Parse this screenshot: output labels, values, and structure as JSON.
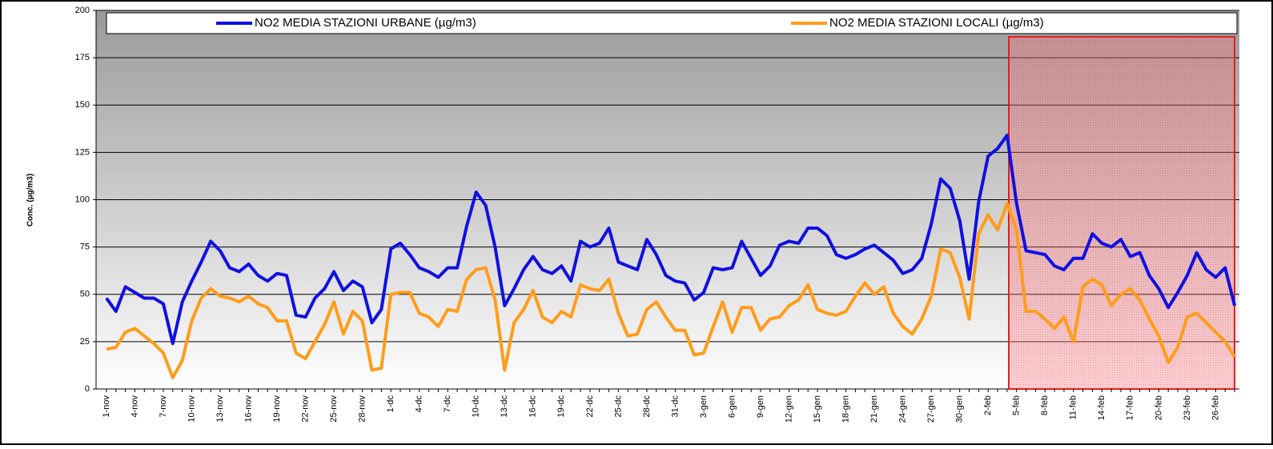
{
  "chart_data": {
    "type": "line",
    "y_label": "Conc. (µg/m3)",
    "categories": [
      "1-nov",
      null,
      null,
      "4-nov",
      null,
      null,
      "7-nov",
      null,
      null,
      "10-nov",
      null,
      null,
      "13-nov",
      null,
      null,
      "16-nov",
      null,
      null,
      "19-nov",
      null,
      null,
      "22-nov",
      null,
      null,
      "25-nov",
      null,
      null,
      "28-nov",
      null,
      null,
      "1-dc",
      null,
      null,
      "4-dc",
      null,
      null,
      "7-dc",
      null,
      null,
      "10-dc",
      null,
      null,
      "13-dc",
      null,
      null,
      "16-dc",
      null,
      null,
      "19-dc",
      null,
      null,
      "22-dc",
      null,
      null,
      "25-dc",
      null,
      null,
      "28-dc",
      null,
      null,
      "31-dc",
      null,
      null,
      "3-gen",
      null,
      null,
      "6-gen",
      null,
      null,
      "9-gen",
      null,
      null,
      "12-gen",
      null,
      null,
      "15-gen",
      null,
      null,
      "18-gen",
      null,
      null,
      "21-gen",
      null,
      null,
      "24-gen",
      null,
      null,
      "27-gen",
      null,
      null,
      "30-gen",
      null,
      null,
      "2-feb",
      null,
      null,
      "5-feb",
      null,
      null,
      "8-feb",
      null,
      null,
      "11-feb",
      null,
      null,
      "14-feb",
      null,
      null,
      "17-feb",
      null,
      null,
      "20-feb",
      null,
      null,
      "23-feb",
      null,
      null,
      "26-feb",
      null,
      null
    ],
    "series": [
      {
        "name": "NO2 MEDIA STAZIONI URBANE (µg/m3)",
        "color": "#1010e0",
        "values": [
          48,
          41,
          54,
          51,
          48,
          48,
          45,
          24,
          46,
          57,
          67,
          78,
          73,
          64,
          62,
          66,
          60,
          57,
          61,
          60,
          39,
          38,
          48,
          53,
          62,
          52,
          57,
          54,
          35,
          42,
          74,
          77,
          71,
          64,
          62,
          59,
          64,
          64,
          86,
          104,
          97,
          75,
          44,
          53,
          63,
          70,
          63,
          61,
          65,
          57,
          78,
          75,
          77,
          85,
          67,
          65,
          63,
          79,
          71,
          60,
          57,
          56,
          47,
          51,
          64,
          63,
          64,
          78,
          69,
          60,
          65,
          76,
          78,
          77,
          85,
          85,
          81,
          71,
          69,
          71,
          74,
          76,
          72,
          68,
          61,
          63,
          69,
          87,
          111,
          106,
          89,
          58,
          99,
          123,
          127,
          134,
          98,
          73,
          72,
          71,
          65,
          63,
          69,
          69,
          82,
          77,
          75,
          79,
          70,
          72,
          60,
          53,
          43,
          51,
          60,
          72,
          63,
          59,
          64,
          44
        ]
      },
      {
        "name": "NO2 MEDIA STAZIONI LOCALI (µg/m3)",
        "color": "#ff9c1a",
        "values": [
          21,
          22,
          30,
          32,
          28,
          24,
          19,
          6,
          15,
          36,
          48,
          53,
          49,
          48,
          46,
          49,
          45,
          43,
          36,
          36,
          19,
          16,
          25,
          34,
          46,
          29,
          41,
          36,
          10,
          11,
          50,
          51,
          51,
          40,
          38,
          33,
          42,
          41,
          58,
          63,
          64,
          47,
          10,
          35,
          42,
          52,
          38,
          35,
          41,
          38,
          55,
          53,
          52,
          58,
          40,
          28,
          29,
          42,
          46,
          38,
          31,
          31,
          18,
          19,
          33,
          46,
          30,
          43,
          43,
          31,
          37,
          38,
          44,
          47,
          55,
          42,
          40,
          39,
          41,
          49,
          56,
          50,
          54,
          40,
          33,
          29,
          37,
          49,
          74,
          72,
          59,
          37,
          82,
          92,
          84,
          98,
          84,
          41,
          41,
          37,
          32,
          38,
          25,
          54,
          58,
          55,
          44,
          50,
          53,
          47,
          37,
          28,
          14,
          22,
          38,
          40,
          35,
          30,
          25,
          17
        ]
      }
    ],
    "ylim": [
      0,
      200
    ],
    "yticks": [
      0,
      25,
      50,
      75,
      100,
      125,
      150,
      175,
      200
    ],
    "grid": true
  }
}
